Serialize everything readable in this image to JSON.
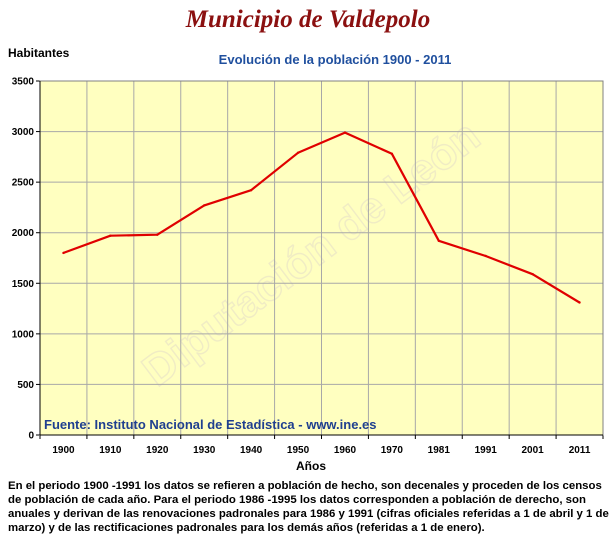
{
  "title": "Municipio de Valdepolo",
  "watermark": "Diputación de León",
  "note": "En el periodo 1900 -1991 los datos se refieren a población de hecho, son decenales y proceden de los censos de población de cada año. Para el periodo 1986 -1995 los datos corresponden a población de derecho, son anuales y derivan de las renovaciones padronales para 1986 y 1991 (cifras oficiales referidas a 1 de abril y 1 de marzo) y de las rectificaciones padronales para los demás años (referidas a 1 de enero).",
  "colors": {
    "line": "#e00000",
    "plot_bg": "#ffffc0",
    "grid": "#a8a8a8",
    "title": "#8b1010",
    "subtitle": "#1f4f9e"
  },
  "chart_data": {
    "type": "line",
    "title": "Evolución de la población 1900 - 2011",
    "xlabel": "Años",
    "ylabel": "Habitantes",
    "annotation": "Fuente: Instituto Nacional de Estadística - www.ine.es",
    "categories": [
      "1900",
      "1910",
      "1920",
      "1930",
      "1940",
      "1950",
      "1960",
      "1970",
      "1981",
      "1991",
      "2001",
      "2011"
    ],
    "series": [
      {
        "values": [
          1800,
          1970,
          1980,
          2270,
          2420,
          2790,
          2990,
          2780,
          1920,
          1770,
          1590,
          1310
        ]
      }
    ],
    "ylim": [
      0,
      3500
    ],
    "yticks": [
      0,
      500,
      1000,
      1500,
      2000,
      2500,
      3000,
      3500
    ],
    "grid": true
  }
}
